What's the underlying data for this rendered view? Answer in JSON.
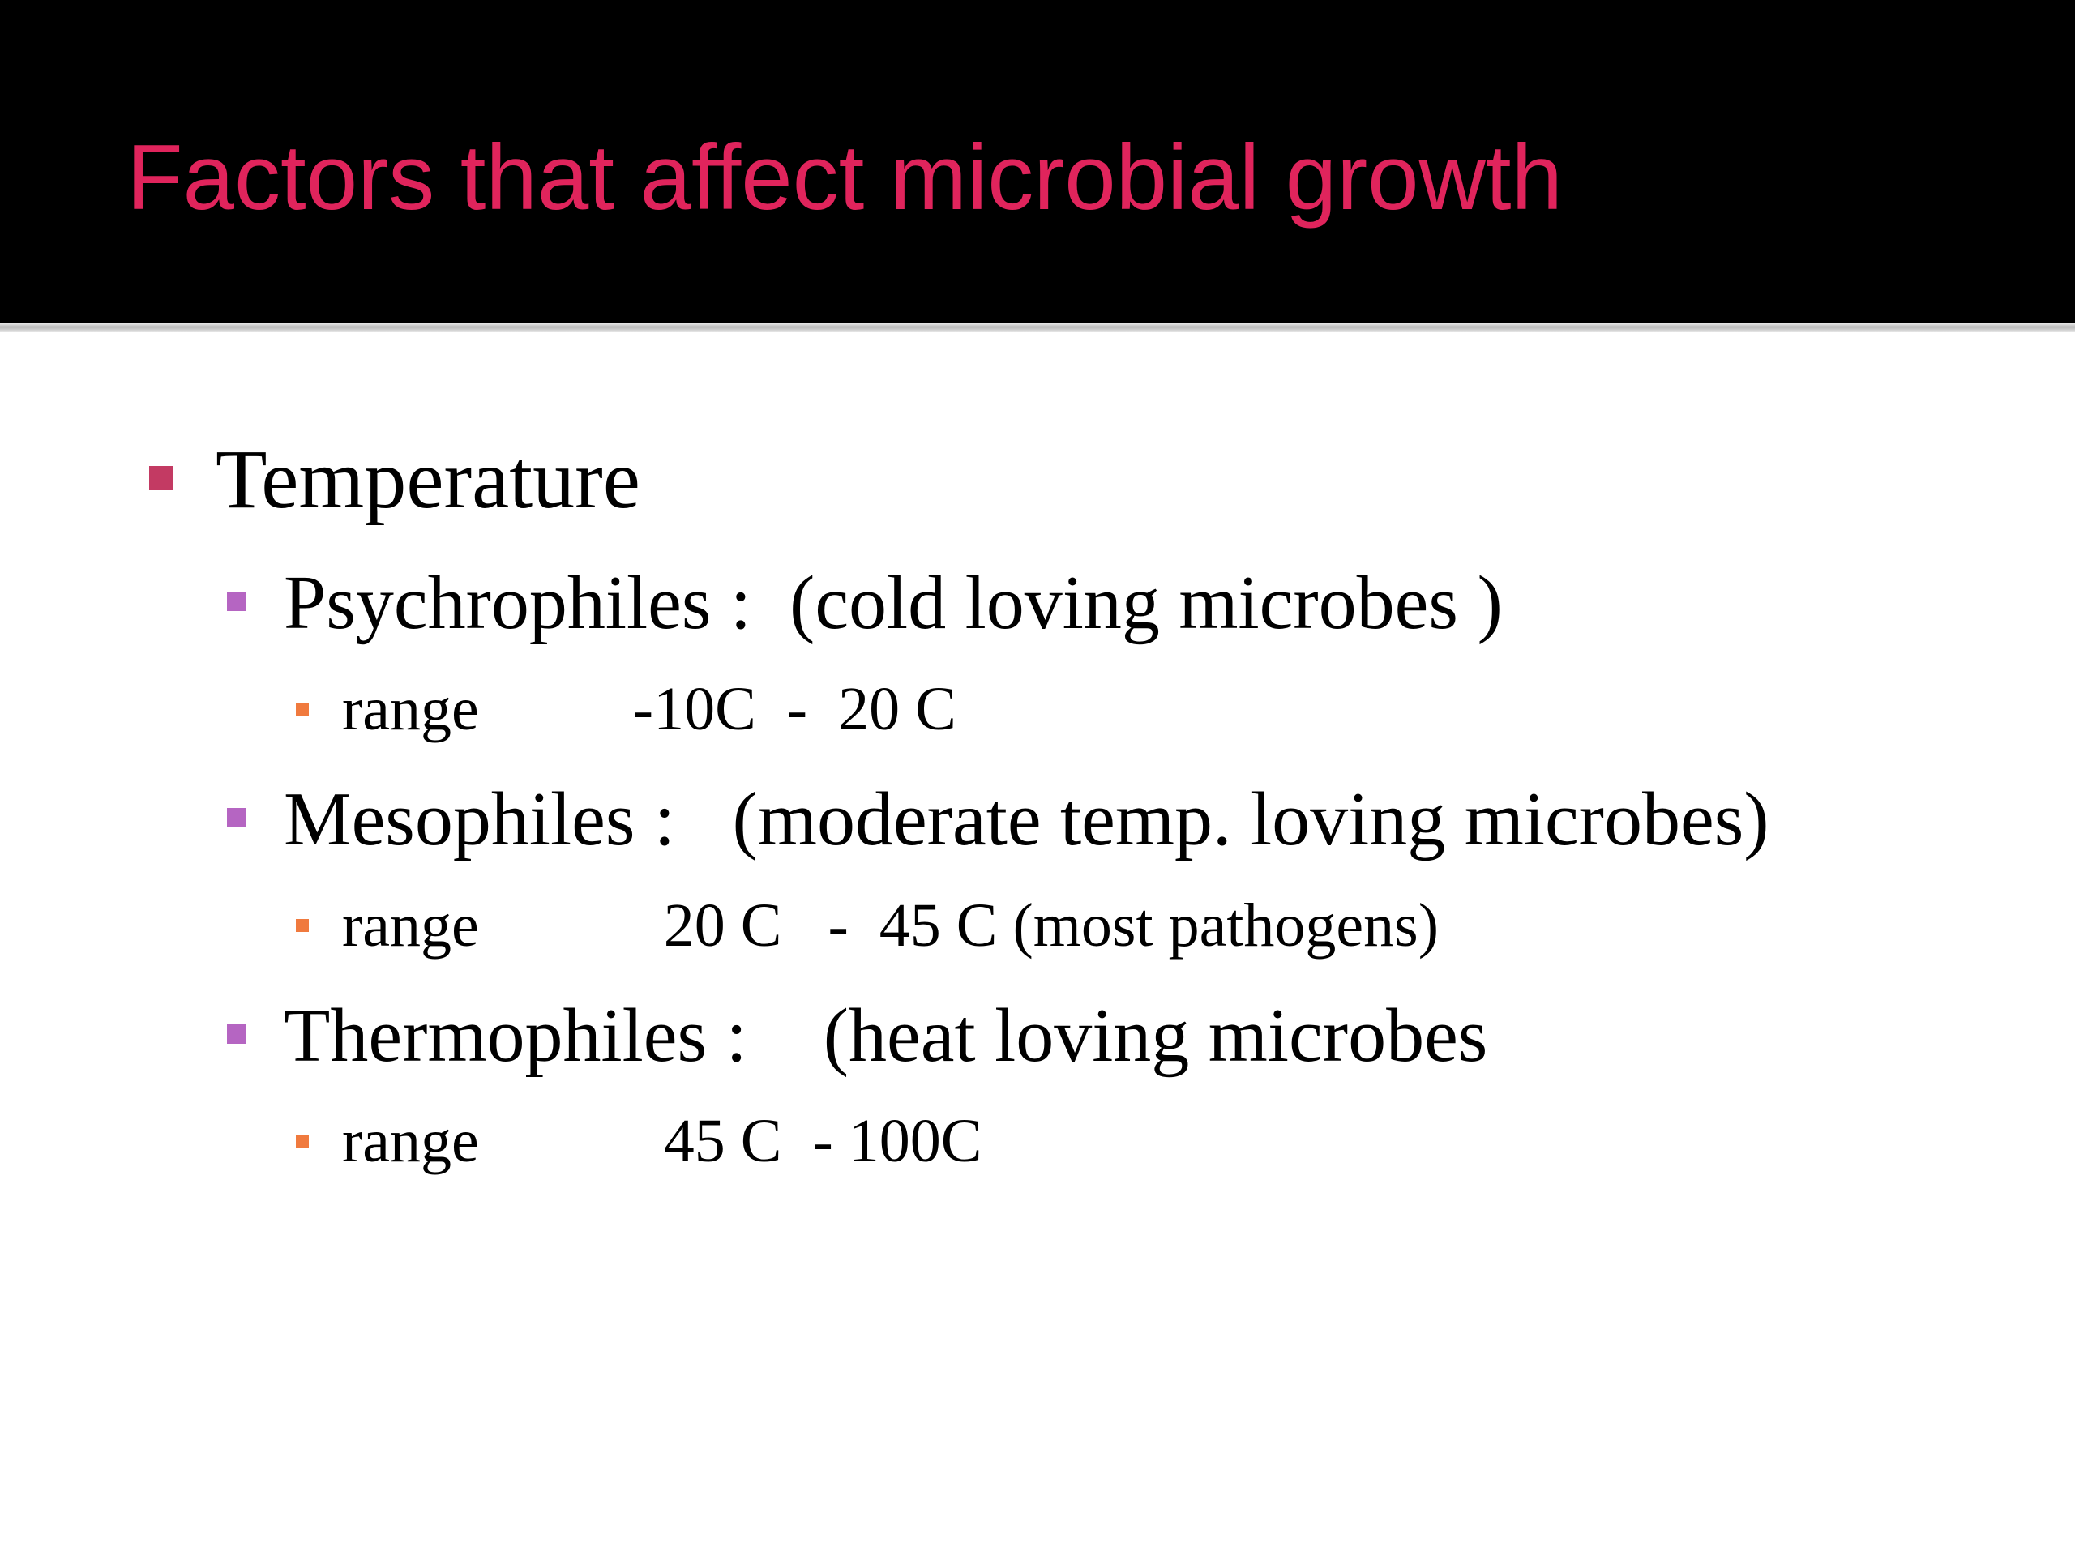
{
  "slide": {
    "title": "Factors that affect microbial growth",
    "items": [
      {
        "text": "Temperature",
        "children": [
          {
            "text": "Psychrophiles :  (cold loving microbes )",
            "children": [
              {
                "text": "range          -10C  -  20 C"
              }
            ]
          },
          {
            "text": "Mesophiles :   (moderate temp. loving microbes)",
            "children": [
              {
                "text": "range            20 C   -  45 C (most pathogens)"
              }
            ]
          },
          {
            "text": "Thermophiles :    (heat loving microbes",
            "children": [
              {
                "text": "range            45 C  - 100C"
              }
            ]
          }
        ]
      }
    ]
  },
  "colors": {
    "title": "#e0245c",
    "title_band": "#000000",
    "bullet_level1": "#c33a63",
    "bullet_level2": "#b565c2",
    "bullet_level3": "#f07a3e"
  },
  "icons": {
    "level1": "square-bullet-icon",
    "level2": "square-bullet-icon",
    "level3": "square-bullet-icon"
  }
}
